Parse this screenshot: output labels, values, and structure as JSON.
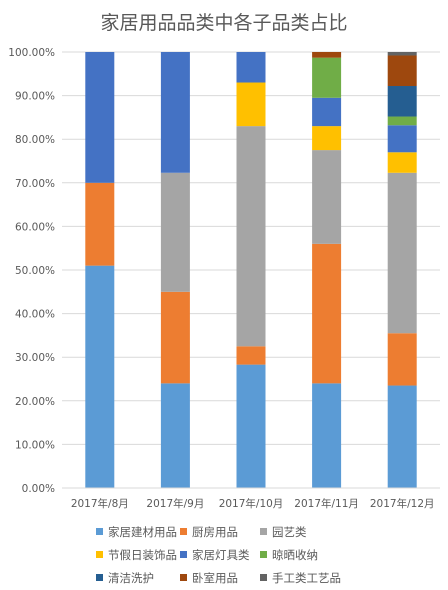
{
  "chart_data": {
    "type": "bar",
    "stacked": true,
    "title": "家居用品品类中各子品类占比",
    "xlabel": "",
    "ylabel": "",
    "ylim": [
      0,
      100
    ],
    "y_ticks": [
      "0.00%",
      "10.00%",
      "20.00%",
      "30.00%",
      "40.00%",
      "50.00%",
      "60.00%",
      "70.00%",
      "80.00%",
      "90.00%",
      "100.00%"
    ],
    "categories": [
      "2017年/8月",
      "2017年/9月",
      "2017年/10月",
      "2017年/11月",
      "2017年/12月"
    ],
    "grid": true,
    "legend_position": "bottom",
    "series": [
      {
        "name": "家居建材用品",
        "color": "#5b9bd5",
        "values": [
          51,
          24,
          28.3,
          24,
          23.5
        ]
      },
      {
        "name": "厨房用品",
        "color": "#ed7d31",
        "values": [
          19,
          21,
          4.2,
          32,
          12
        ]
      },
      {
        "name": "园艺类",
        "color": "#a5a5a5",
        "values": [
          0,
          27.3,
          50.5,
          21.5,
          36.8
        ]
      },
      {
        "name": "节假日装饰品",
        "color": "#ffc000",
        "values": [
          0,
          0,
          10,
          5.5,
          4.7
        ]
      },
      {
        "name": "家居灯具类",
        "color": "#4472c4",
        "values": [
          30,
          27.7,
          7,
          6.5,
          6.2
        ]
      },
      {
        "name": "晾晒收纳",
        "color": "#70ad47",
        "values": [
          0,
          0,
          0,
          9.2,
          2
        ]
      },
      {
        "name": "清洁洗护",
        "color": "#255e91",
        "values": [
          0,
          0,
          0,
          0,
          7
        ]
      },
      {
        "name": "卧室用品",
        "color": "#9e480e",
        "values": [
          0,
          0,
          0,
          1.3,
          7
        ]
      },
      {
        "name": "手工类工艺品",
        "color": "#636363",
        "values": [
          0,
          0,
          0,
          0,
          0.8
        ]
      }
    ]
  }
}
